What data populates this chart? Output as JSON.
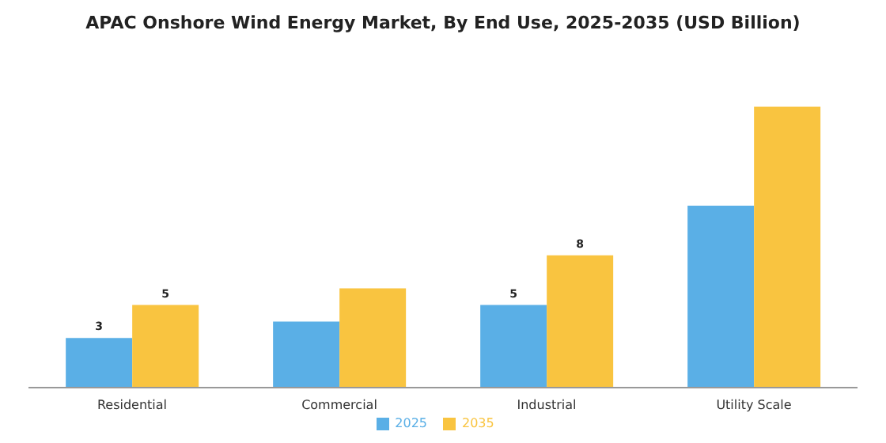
{
  "chart_data": {
    "type": "bar",
    "title": "APAC Onshore Wind Energy Market, By End Use, 2025-2035 (USD Billion)",
    "categories": [
      "Residential",
      "Commercial",
      "Industrial",
      "Utility Scale"
    ],
    "series": [
      {
        "name": "2025",
        "color": "#5aafe6",
        "values": [
          3,
          4,
          5,
          11
        ],
        "value_labels": [
          "3",
          null,
          "5",
          null
        ]
      },
      {
        "name": "2035",
        "color": "#f9c440",
        "values": [
          5,
          6,
          8,
          17
        ],
        "value_labels": [
          "5",
          null,
          "8",
          null
        ]
      }
    ],
    "legend": "bottom",
    "grid": false
  }
}
